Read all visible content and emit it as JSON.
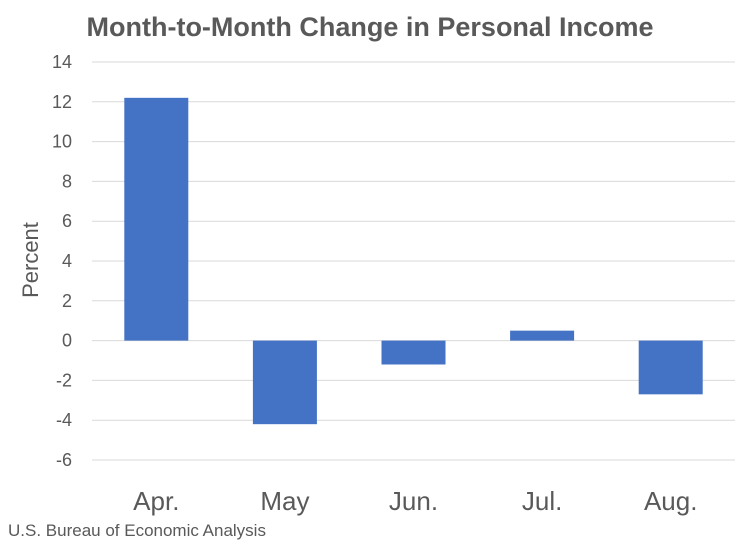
{
  "chart_data": {
    "type": "bar",
    "title": "Month-to-Month Change in Personal Income",
    "xlabel": "",
    "ylabel": "Percent",
    "categories": [
      "Apr.",
      "May",
      "Jun.",
      "Jul.",
      "Aug."
    ],
    "values": [
      12.2,
      -4.2,
      -1.2,
      0.5,
      -2.7
    ],
    "ylim": [
      -6,
      14
    ],
    "yticks": [
      14,
      12,
      10,
      8,
      6,
      4,
      2,
      0,
      -2,
      -4,
      -6
    ],
    "ytick_labels": [
      "14",
      "12",
      "10",
      "8",
      "6",
      "4",
      "2",
      "0",
      "-2",
      "-4",
      "-6"
    ],
    "grid": true,
    "legend": "none",
    "bar_color": "#4472C4"
  },
  "source_note": "U.S. Bureau of Economic Analysis"
}
